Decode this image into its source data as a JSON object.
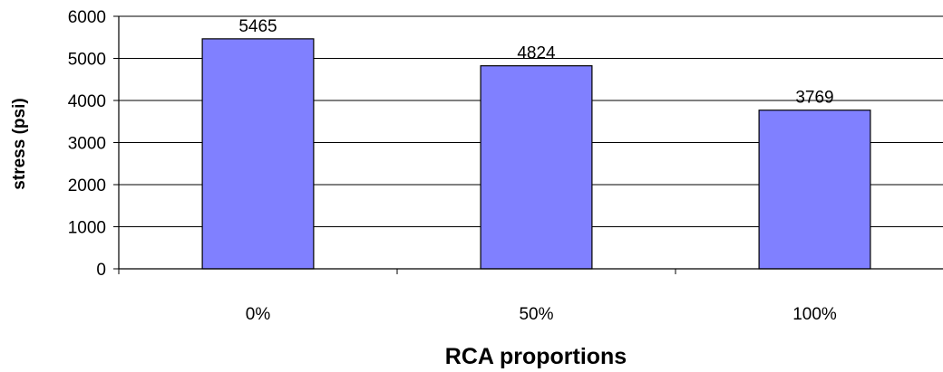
{
  "chart_data": {
    "type": "bar",
    "title": "",
    "xlabel": "RCA proportions",
    "ylabel": "stress (psi)",
    "categories": [
      "0%",
      "50%",
      "100%"
    ],
    "values": [
      5465,
      4824,
      3769
    ],
    "data_labels": [
      "5465",
      "4824",
      "3769"
    ],
    "ylim": [
      0,
      6000
    ],
    "yticks": [
      "0",
      "1000",
      "2000",
      "3000",
      "4000",
      "5000",
      "6000"
    ],
    "grid": "horizontal",
    "legend": "none",
    "bar_color": "#8080ff",
    "bar_outline": "#000000"
  }
}
